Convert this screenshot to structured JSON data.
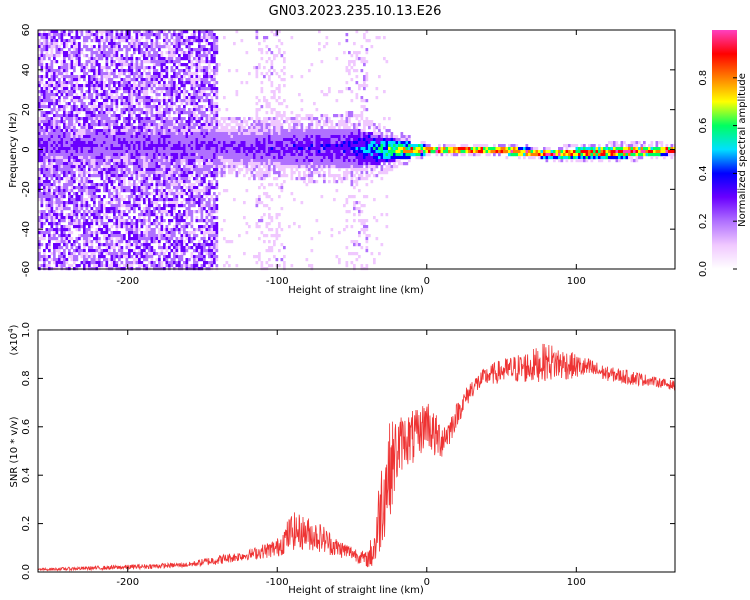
{
  "chart_data": [
    {
      "type": "heatmap",
      "title": "GN03.2023.235.10.13.E26",
      "xlabel": "Height of straight line (km)",
      "ylabel": "Frequency (Hz)",
      "xlim": [
        -260,
        166
      ],
      "ylim": [
        -60,
        60
      ],
      "x_ticks": [
        -200,
        -100,
        0,
        100
      ],
      "y_ticks": [
        -60,
        -40,
        -20,
        0,
        20,
        40,
        60
      ],
      "colorbar": {
        "label": "Normalized spectral amplitude",
        "range": [
          0,
          1
        ],
        "ticks": [
          0.0,
          0.2,
          0.4,
          0.6,
          0.8
        ],
        "colors": [
          "#ffffff",
          "#f0c8ff",
          "#b070ff",
          "#6a00ff",
          "#0000ff",
          "#00e0ff",
          "#00ff60",
          "#ffff00",
          "#ff8000",
          "#ff0000",
          "#ff40c0"
        ]
      },
      "ridge": [
        {
          "x": -150,
          "freq": 2,
          "spread": 8,
          "amplitude": 0.25
        },
        {
          "x": -100,
          "freq": 1,
          "spread": 9,
          "amplitude": 0.3
        },
        {
          "x": -50,
          "freq": 1,
          "spread": 10,
          "amplitude": 0.35
        },
        {
          "x": -25,
          "freq": 0,
          "spread": 6,
          "amplitude": 0.6
        },
        {
          "x": 0,
          "freq": 0,
          "spread": 2,
          "amplitude": 0.95
        },
        {
          "x": 50,
          "freq": 0,
          "spread": 2,
          "amplitude": 0.95
        },
        {
          "x": 80,
          "freq": -2,
          "spread": 2,
          "amplitude": 0.9
        },
        {
          "x": 130,
          "freq": -1,
          "spread": 3,
          "amplitude": 0.9
        },
        {
          "x": 166,
          "freq": 0,
          "spread": 2,
          "amplitude": 0.95
        }
      ],
      "noise_region": {
        "x_start": -260,
        "x_end": -140
      }
    },
    {
      "type": "line",
      "xlabel": "Height of straight line (km)",
      "ylabel": "SNR (10 * v/v)",
      "y_scale_label": "(x10",
      "y_scale_exp": "4",
      "xlim": [
        -260,
        166
      ],
      "ylim": [
        0,
        1.0
      ],
      "x_ticks": [
        -200,
        -100,
        0,
        100
      ],
      "y_ticks": [
        0.0,
        0.2,
        0.4,
        0.6,
        0.8,
        1.0
      ],
      "color": "#ee3333",
      "x": [
        -260,
        -200,
        -160,
        -140,
        -120,
        -100,
        -90,
        -80,
        -70,
        -60,
        -50,
        -40,
        -35,
        -30,
        -25,
        -20,
        -15,
        -10,
        -5,
        0,
        5,
        10,
        15,
        20,
        30,
        40,
        50,
        60,
        70,
        80,
        90,
        100,
        110,
        120,
        130,
        140,
        150,
        166
      ],
      "y": [
        0.01,
        0.02,
        0.03,
        0.05,
        0.07,
        0.1,
        0.17,
        0.16,
        0.14,
        0.1,
        0.08,
        0.05,
        0.1,
        0.3,
        0.42,
        0.5,
        0.55,
        0.55,
        0.57,
        0.63,
        0.56,
        0.55,
        0.58,
        0.65,
        0.76,
        0.81,
        0.83,
        0.84,
        0.85,
        0.87,
        0.86,
        0.85,
        0.84,
        0.82,
        0.81,
        0.8,
        0.79,
        0.77
      ],
      "noise_amplitude": [
        0.005,
        0.01,
        0.01,
        0.02,
        0.02,
        0.04,
        0.08,
        0.07,
        0.06,
        0.04,
        0.03,
        0.03,
        0.1,
        0.2,
        0.2,
        0.15,
        0.1,
        0.12,
        0.1,
        0.1,
        0.1,
        0.08,
        0.06,
        0.05,
        0.04,
        0.04,
        0.05,
        0.06,
        0.07,
        0.08,
        0.07,
        0.05,
        0.04,
        0.03,
        0.03,
        0.03,
        0.02,
        0.02
      ]
    }
  ]
}
